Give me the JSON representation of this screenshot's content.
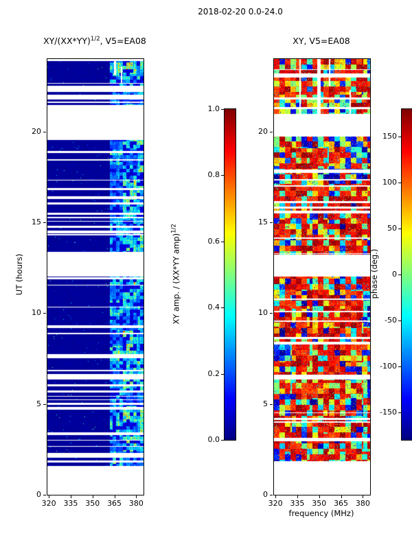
{
  "figure_title": "2018-02-20 0.0-24.0",
  "panels": {
    "left": {
      "title_base": "XY/(XX*YY)",
      "title_sup": "1/2",
      "title_rest": ", V5=EA08",
      "ylabel": "UT (hours)"
    },
    "right": {
      "title": "XY, V5=EA08",
      "xlabel": "frequency (MHz)"
    }
  },
  "colorbars": {
    "left": {
      "label_base": "XY amp. / (XX*YY amp)",
      "label_sup": "1/2",
      "range": [
        0,
        1
      ],
      "ticks": [
        0.0,
        0.2,
        0.4,
        0.6,
        0.8,
        1.0
      ],
      "tick_labels": [
        "0.0",
        "0.2",
        "0.4",
        "0.6",
        "0.8",
        "1.0"
      ],
      "colormap": "jet"
    },
    "right": {
      "label": "phase (deg.)",
      "range": [
        -180,
        180
      ],
      "ticks": [
        -150,
        -100,
        -50,
        0,
        50,
        100,
        150
      ],
      "tick_labels": [
        "-150",
        "-100",
        "-50",
        "0",
        "50",
        "100",
        "150"
      ],
      "colormap": "jet"
    }
  },
  "chart_data": [
    {
      "type": "heatmap",
      "title": "XY/(XX*YY)^(1/2), V5=EA08",
      "xlabel": "frequency (MHz)",
      "ylabel": "UT (hours)",
      "x_range": [
        319,
        385
      ],
      "y_range": [
        0,
        24
      ],
      "x_ticks": [
        320,
        335,
        350,
        365,
        380
      ],
      "x_tick_labels": [
        "320",
        "335",
        "350",
        "365",
        "380"
      ],
      "y_ticks": [
        0,
        5,
        10,
        15,
        20
      ],
      "y_tick_labels": [
        "0",
        "5",
        "10",
        "15",
        "20"
      ],
      "colormap": "jet",
      "value_label": "XY amp. / (XX*YY amp)^(1/2)",
      "value_range": [
        0,
        1
      ],
      "pattern": {
        "mode": "amp",
        "seed": 12,
        "cell": 5,
        "block": 22,
        "base_value": [
          0.01,
          0.045
        ],
        "band_start_mhz": 361.5,
        "band_value_max": 0.9,
        "stripe_prob": 0.065,
        "gaps_ut": [
          [
            0.0,
            1.55
          ],
          [
            2.05,
            2.3
          ],
          [
            3.3,
            3.42
          ],
          [
            4.7,
            4.8
          ],
          [
            6.35,
            6.62
          ],
          [
            7.55,
            7.72
          ],
          [
            9.2,
            9.32
          ],
          [
            12.05,
            13.35
          ],
          [
            14.4,
            14.55
          ],
          [
            16.3,
            16.42
          ],
          [
            19.55,
            21.45
          ],
          [
            21.8,
            22.0
          ],
          [
            22.25,
            22.5
          ],
          [
            23.9,
            24.0
          ]
        ],
        "col_gaps": [
          {
            "mhz": [
              364.5,
              366.0
            ],
            "ut": [
              23.15,
              24.0
            ]
          },
          {
            "mhz": [
              369.0,
              370.0
            ],
            "ut": [
              22.7,
              23.6
            ]
          }
        ]
      }
    },
    {
      "type": "heatmap",
      "title": "XY, V5=EA08",
      "xlabel": "frequency (MHz)",
      "ylabel": "UT (hours)",
      "x_range": [
        319,
        385
      ],
      "y_range": [
        0,
        24
      ],
      "x_ticks": [
        320,
        335,
        350,
        365,
        380
      ],
      "x_tick_labels": [
        "320",
        "335",
        "350",
        "365",
        "380"
      ],
      "y_ticks": [
        0,
        5,
        10,
        15,
        20
      ],
      "y_tick_labels": [
        "0",
        "5",
        "10",
        "15",
        "20"
      ],
      "colormap": "jet",
      "value_label": "phase (deg.)",
      "value_range": [
        -180,
        180
      ],
      "pattern": {
        "mode": "phase",
        "seed": 77,
        "cell": 8,
        "block": 26,
        "stripe_prob": 0.05,
        "gaps_ut": [
          [
            0.0,
            1.85
          ],
          [
            2.95,
            3.08
          ],
          [
            6.35,
            6.6
          ],
          [
            8.3,
            8.42
          ],
          [
            12.05,
            13.2
          ],
          [
            15.5,
            15.62
          ],
          [
            17.75,
            17.9
          ],
          [
            19.75,
            20.95
          ],
          [
            23.0,
            23.18
          ]
        ],
        "col_gaps": [
          {
            "mhz": [
              348.5,
              351.0
            ],
            "ut": [
              21.0,
              24.0
            ]
          },
          {
            "mhz": [
              336.0,
              337.3
            ],
            "ut": [
              21.0,
              24.0
            ]
          },
          {
            "mhz": [
              356.5,
              357.5
            ],
            "ut": [
              22.5,
              24.0
            ]
          },
          {
            "mhz": [
              370.5,
              371.5
            ],
            "ut": [
              21.0,
              22.3
            ]
          }
        ]
      }
    }
  ]
}
